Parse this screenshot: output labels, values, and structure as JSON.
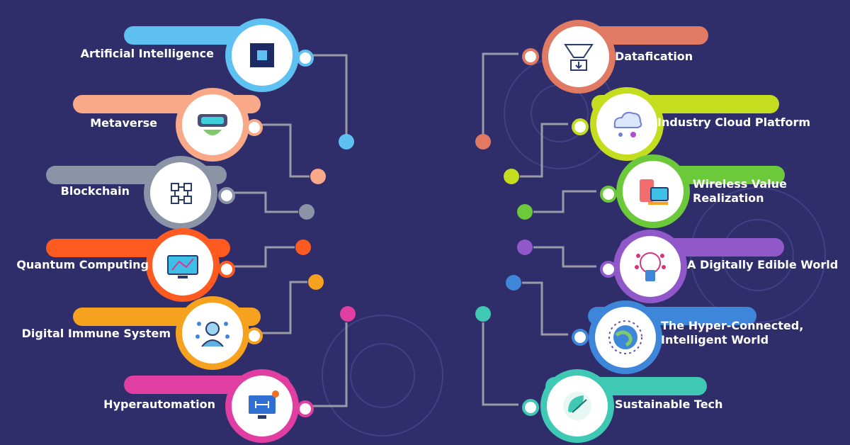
{
  "background_color": "#2f2e6b",
  "connector_color": "#9a9aa8",
  "left_items": [
    {
      "label": "Artificial Intelligence",
      "color": "#5fc0f2",
      "icon": "ai-chip-icon"
    },
    {
      "label": "Metaverse",
      "color": "#f9a888",
      "icon": "vr-headset-icon"
    },
    {
      "label": "Blockchain",
      "color": "#8a94a6",
      "icon": "blockchain-cubes-icon"
    },
    {
      "label": "Quantum Computing",
      "color": "#ff5a1f",
      "icon": "quantum-monitor-icon"
    },
    {
      "label": "Digital Immune System",
      "color": "#f7a21e",
      "icon": "immune-system-person-icon"
    },
    {
      "label": "Hyperautomation",
      "color": "#e03ea1",
      "icon": "automation-monitor-icon"
    }
  ],
  "right_items": [
    {
      "label": "Datafication",
      "color": "#e17a62",
      "icon": "data-funnel-icon"
    },
    {
      "label": "Industry Cloud Platform",
      "color": "#c4dd1f",
      "icon": "cloud-network-icon"
    },
    {
      "label": "Wireless Value\nRealization",
      "color": "#6cc93a",
      "icon": "wireless-devices-icon"
    },
    {
      "label": "A Digitally Edible World",
      "color": "#9058c8",
      "icon": "digital-tree-icon"
    },
    {
      "label": "The Hyper-Connected,\nIntelligent World",
      "color": "#3d86d9",
      "icon": "connected-globe-icon"
    },
    {
      "label": "Sustainable Tech",
      "color": "#3fc9b5",
      "icon": "recycle-leaf-icon"
    }
  ]
}
